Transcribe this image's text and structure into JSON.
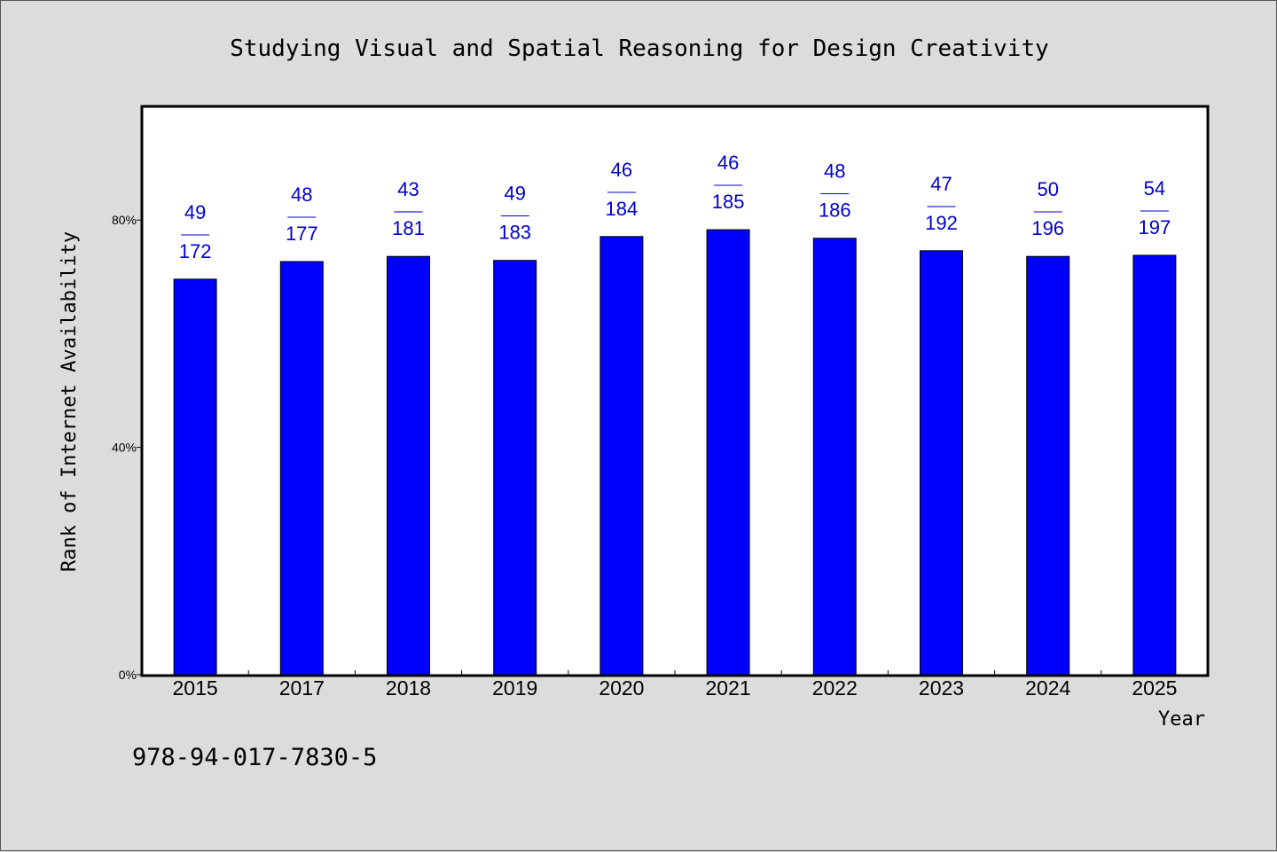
{
  "chart_data": {
    "type": "bar",
    "title": "Studying Visual and Spatial Reasoning for Design Creativity",
    "xlabel": "Year",
    "ylabel": "Rank of Internet Availability",
    "categories": [
      "2015",
      "2017",
      "2018",
      "2019",
      "2020",
      "2021",
      "2022",
      "2023",
      "2024",
      "2025"
    ],
    "values": [
      69.6,
      72.7,
      73.6,
      72.9,
      77.1,
      78.3,
      76.8,
      74.6,
      73.6,
      73.8
    ],
    "value_unit": "%",
    "data_labels": [
      {
        "top": "49",
        "bottom": "172"
      },
      {
        "top": "48",
        "bottom": "177"
      },
      {
        "top": "43",
        "bottom": "181"
      },
      {
        "top": "49",
        "bottom": "183"
      },
      {
        "top": "46",
        "bottom": "184"
      },
      {
        "top": "46",
        "bottom": "185"
      },
      {
        "top": "48",
        "bottom": "186"
      },
      {
        "top": "47",
        "bottom": "192"
      },
      {
        "top": "50",
        "bottom": "196"
      },
      {
        "top": "54",
        "bottom": "197"
      }
    ],
    "label_separator": "——",
    "ylim": [
      0,
      100
    ],
    "yticks": [
      0,
      40,
      80
    ],
    "ytick_labels": [
      "0%",
      "40%",
      "80%"
    ],
    "grid": false,
    "legend": "none",
    "bar_color": "#0000ff",
    "label_color": "#0000cc",
    "plot_background": "#ffffff",
    "figure_background": "#dcdcdc"
  },
  "footer": {
    "isbn": "978-94-017-7830-5"
  }
}
